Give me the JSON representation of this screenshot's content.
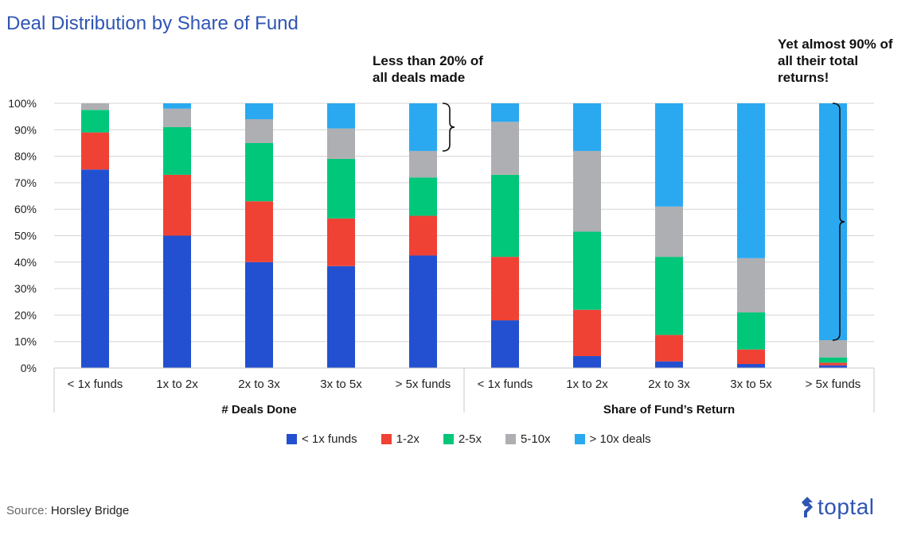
{
  "title": "Deal Distribution by Share of Fund",
  "callouts": {
    "left": [
      "Less than 20% of",
      "all deals made"
    ],
    "right": [
      "Yet almost 90% of",
      "all their total",
      "returns!"
    ]
  },
  "source": {
    "label": "Source:",
    "value": "Horsley Bridge"
  },
  "logo": {
    "text": "toptal",
    "icon": "toptal-logo-icon"
  },
  "chart_data": {
    "type": "bar",
    "stacked": true,
    "ylim": [
      0,
      100
    ],
    "yticks": [
      0,
      10,
      20,
      30,
      40,
      50,
      60,
      70,
      80,
      90,
      100
    ],
    "ytick_suffix": "%",
    "categories": [
      "< 1x funds",
      "1x to 2x",
      "2x to 3x",
      "3x to 5x",
      "> 5x funds",
      "< 1x funds",
      "1x to 2x",
      "2x to 3x",
      "3x to 5x",
      "> 5x funds"
    ],
    "groups": [
      {
        "label": "# Deals Done",
        "start": 0,
        "end": 4
      },
      {
        "label": "Share of Fund’s Return",
        "start": 5,
        "end": 9
      }
    ],
    "series": [
      {
        "name": "< 1x funds",
        "color": "#2350d0",
        "values": [
          75,
          50,
          40,
          38.5,
          42.5,
          18,
          4.5,
          2.5,
          1.5,
          1
        ]
      },
      {
        "name": "1-2x",
        "color": "#ef4235",
        "values": [
          14,
          23,
          23,
          18,
          15,
          24,
          17.5,
          10,
          5.5,
          1
        ]
      },
      {
        "name": "2-5x",
        "color": "#00c77a",
        "values": [
          8.5,
          18,
          22,
          22.5,
          14.5,
          31,
          29.5,
          29.5,
          14,
          2
        ]
      },
      {
        "name": "5-10x",
        "color": "#aeafb2",
        "values": [
          2.5,
          7,
          9,
          11.5,
          10,
          20,
          30.5,
          19,
          20.5,
          6.5
        ]
      },
      {
        "name": "> 10x deals",
        "color": "#2aa9f0",
        "values": [
          0,
          2,
          6,
          9.5,
          18,
          7,
          18,
          39,
          58.5,
          89.5
        ]
      }
    ]
  }
}
